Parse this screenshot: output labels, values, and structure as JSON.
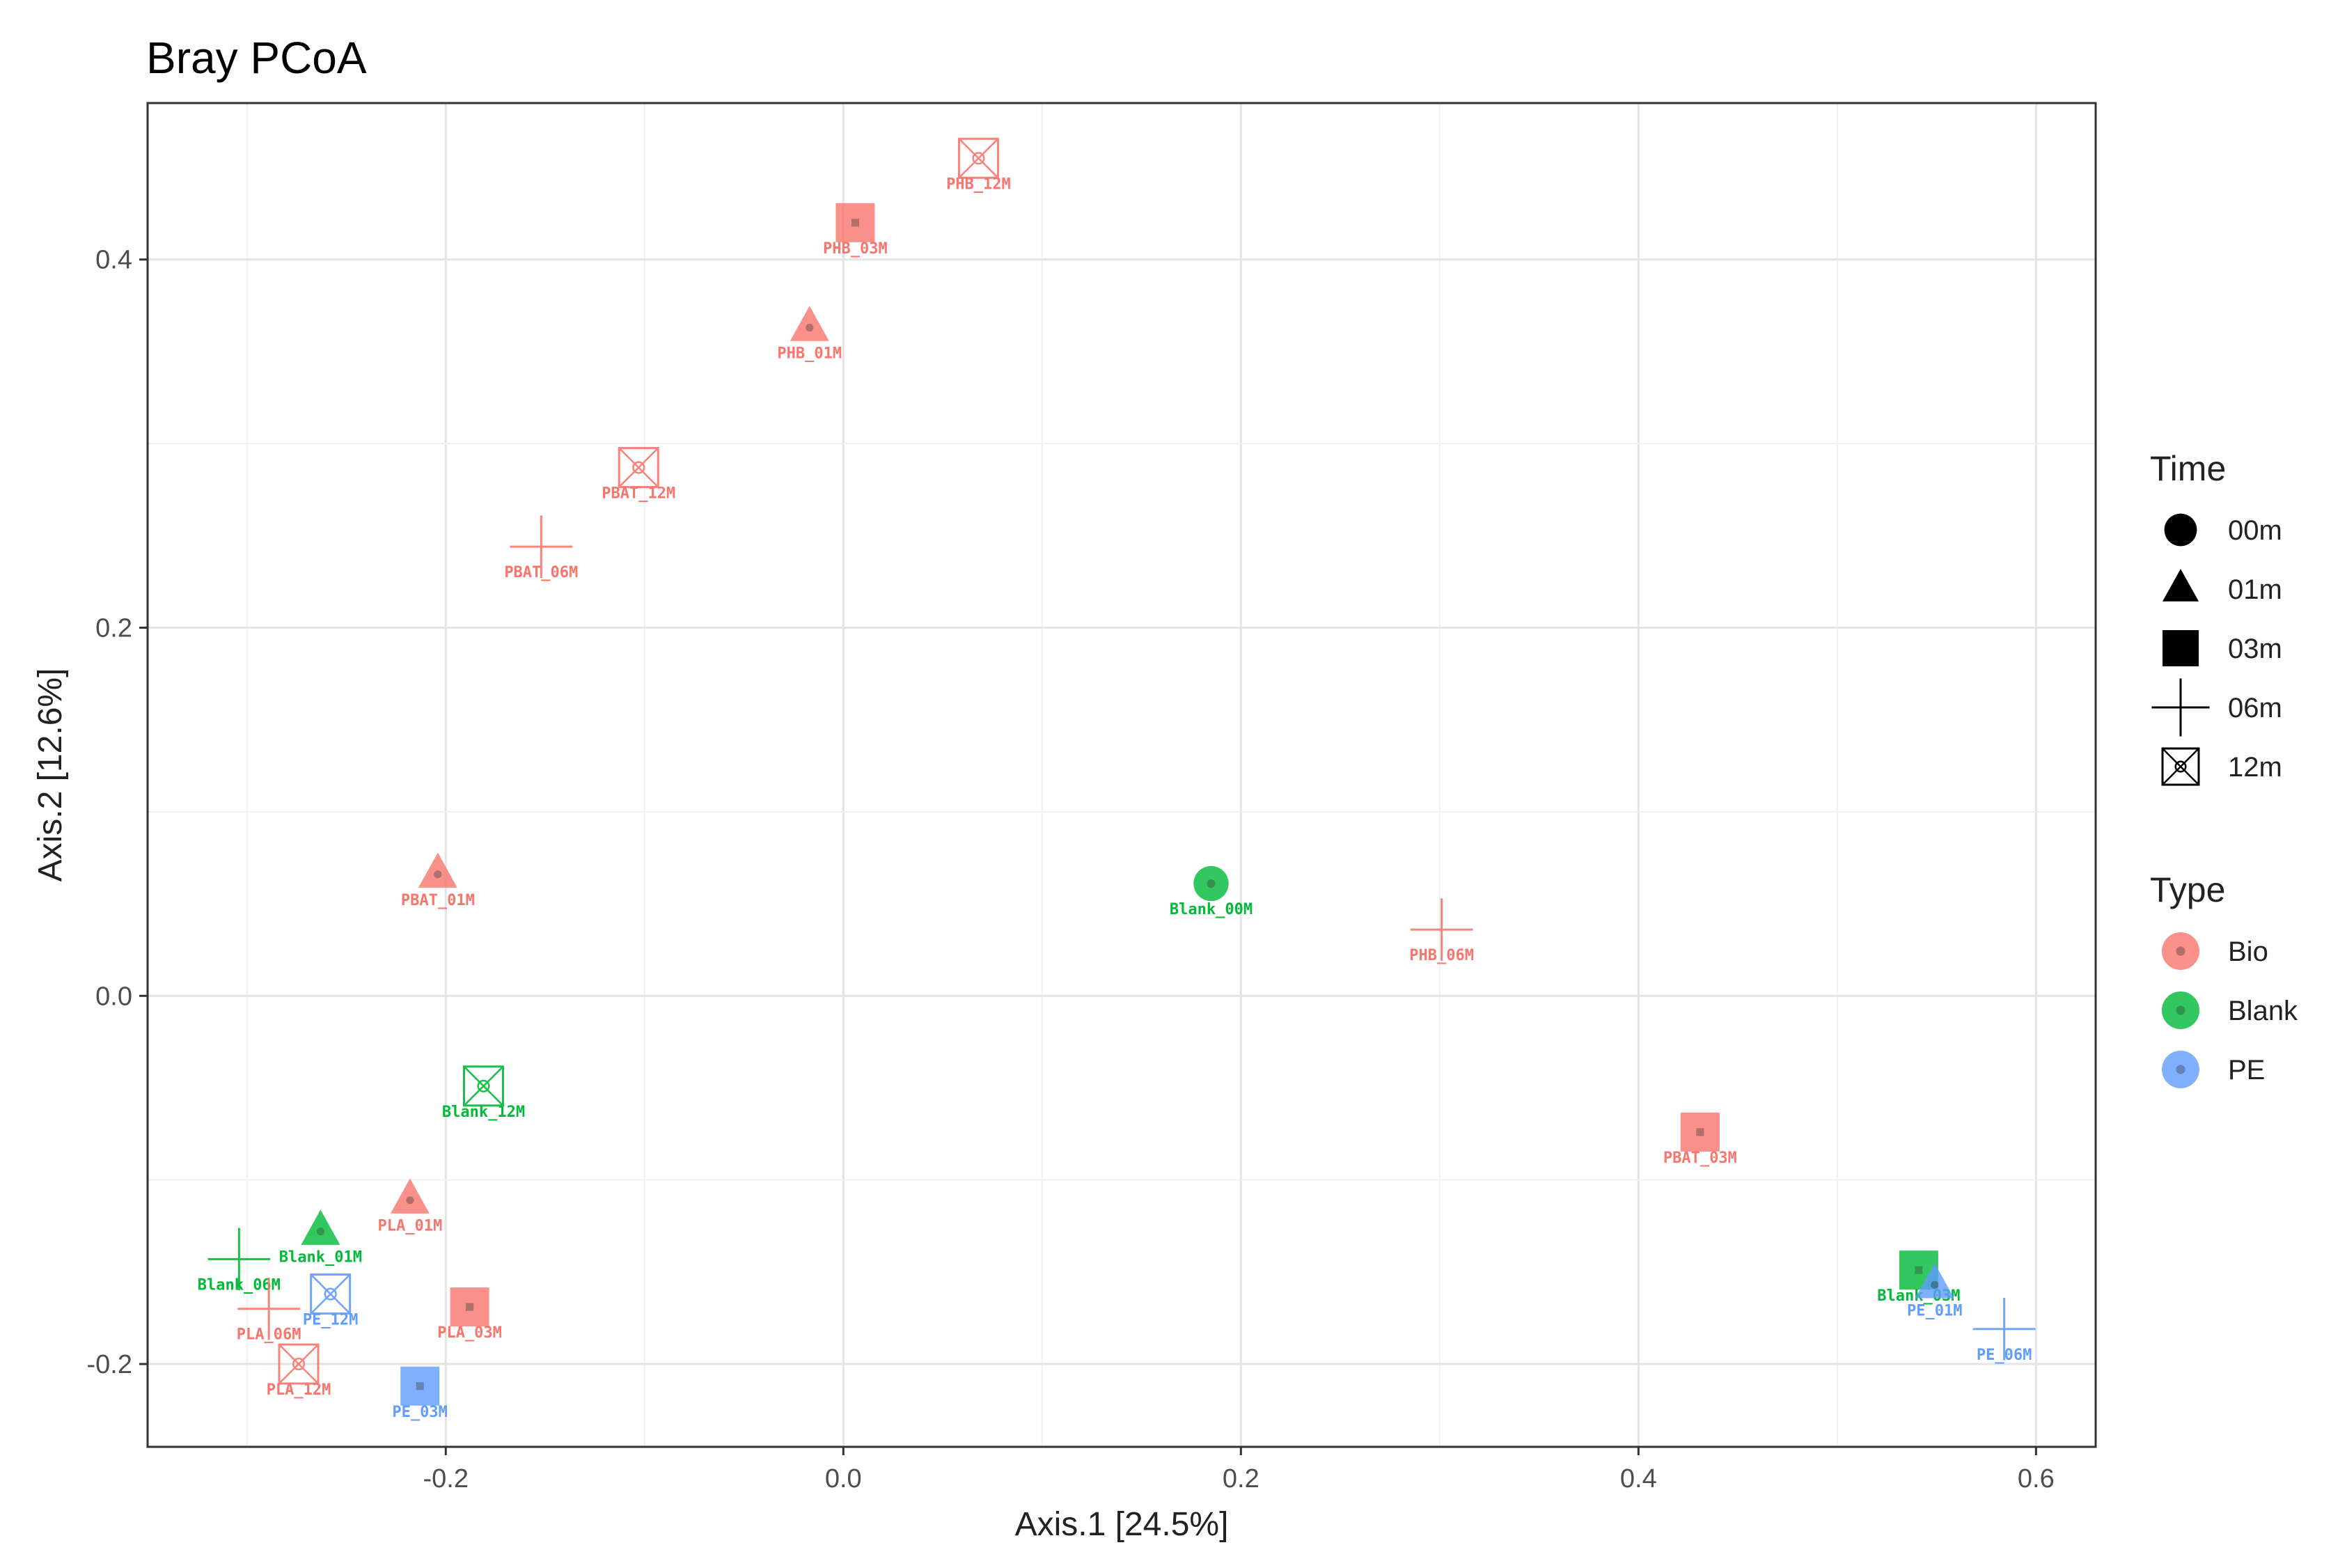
{
  "chart_data": {
    "type": "scatter",
    "title": "Bray PCoA",
    "xlabel": "Axis.1   [24.5%]",
    "ylabel": "Axis.2   [12.6%]",
    "xlim": [
      -0.35,
      0.63
    ],
    "ylim": [
      -0.245,
      0.485
    ],
    "x_ticks": [
      -0.2,
      0.0,
      0.2,
      0.4,
      0.6
    ],
    "x_tick_labels": [
      "-0.2",
      "0.0",
      "0.2",
      "0.4",
      "0.6"
    ],
    "y_ticks": [
      -0.2,
      0.0,
      0.2,
      0.4
    ],
    "y_tick_labels": [
      "-0.2",
      "0.0",
      "0.2",
      "0.4"
    ],
    "grid": true,
    "legend_position": "right",
    "legends": [
      {
        "title": "Time",
        "items": [
          {
            "label": "00m",
            "shape": "circle"
          },
          {
            "label": "01m",
            "shape": "triangle"
          },
          {
            "label": "03m",
            "shape": "square"
          },
          {
            "label": "06m",
            "shape": "plus"
          },
          {
            "label": "12m",
            "shape": "square-cross"
          }
        ]
      },
      {
        "title": "Type",
        "items": [
          {
            "label": "Bio",
            "color": "#F8766D"
          },
          {
            "label": "Blank",
            "color": "#00BA38"
          },
          {
            "label": "PE",
            "color": "#619CFF"
          }
        ]
      }
    ],
    "points": [
      {
        "label": "PHB_12M",
        "x": 0.068,
        "y": 0.455,
        "type": "Bio",
        "time": "12m"
      },
      {
        "label": "PHB_03M",
        "x": 0.006,
        "y": 0.42,
        "type": "Bio",
        "time": "03m"
      },
      {
        "label": "PHB_01M",
        "x": -0.017,
        "y": 0.363,
        "type": "Bio",
        "time": "01m"
      },
      {
        "label": "PBAT_12M",
        "x": -0.103,
        "y": 0.287,
        "type": "Bio",
        "time": "12m"
      },
      {
        "label": "PBAT_06M",
        "x": -0.152,
        "y": 0.244,
        "type": "Bio",
        "time": "06m"
      },
      {
        "label": "PBAT_01M",
        "x": -0.204,
        "y": 0.066,
        "type": "Bio",
        "time": "01m"
      },
      {
        "label": "Blank_00M",
        "x": 0.185,
        "y": 0.061,
        "type": "Blank",
        "time": "00m"
      },
      {
        "label": "PHB_06M",
        "x": 0.301,
        "y": 0.036,
        "type": "Bio",
        "time": "06m"
      },
      {
        "label": "Blank_12M",
        "x": -0.181,
        "y": -0.049,
        "type": "Blank",
        "time": "12m"
      },
      {
        "label": "PBAT_03M",
        "x": 0.431,
        "y": -0.074,
        "type": "Bio",
        "time": "03m"
      },
      {
        "label": "PLA_01M",
        "x": -0.218,
        "y": -0.111,
        "type": "Bio",
        "time": "01m"
      },
      {
        "label": "Blank_01M",
        "x": -0.263,
        "y": -0.128,
        "type": "Blank",
        "time": "01m"
      },
      {
        "label": "Blank_06M",
        "x": -0.304,
        "y": -0.143,
        "type": "Blank",
        "time": "06m"
      },
      {
        "label": "PE_12M",
        "x": -0.258,
        "y": -0.162,
        "type": "PE",
        "time": "12m"
      },
      {
        "label": "PLA_06M",
        "x": -0.289,
        "y": -0.17,
        "type": "Bio",
        "time": "06m"
      },
      {
        "label": "PLA_03M",
        "x": -0.188,
        "y": -0.169,
        "type": "Bio",
        "time": "03m"
      },
      {
        "label": "PLA_12M",
        "x": -0.274,
        "y": -0.2,
        "type": "Bio",
        "time": "12m"
      },
      {
        "label": "PE_03M",
        "x": -0.213,
        "y": -0.212,
        "type": "PE",
        "time": "03m"
      },
      {
        "label": "Blank_03M",
        "x": 0.541,
        "y": -0.149,
        "type": "Blank",
        "time": "03m"
      },
      {
        "label": "PE_01M",
        "x": 0.549,
        "y": -0.157,
        "type": "PE",
        "time": "01m"
      },
      {
        "label": "PE_06M",
        "x": 0.584,
        "y": -0.181,
        "type": "PE",
        "time": "06m"
      }
    ]
  }
}
